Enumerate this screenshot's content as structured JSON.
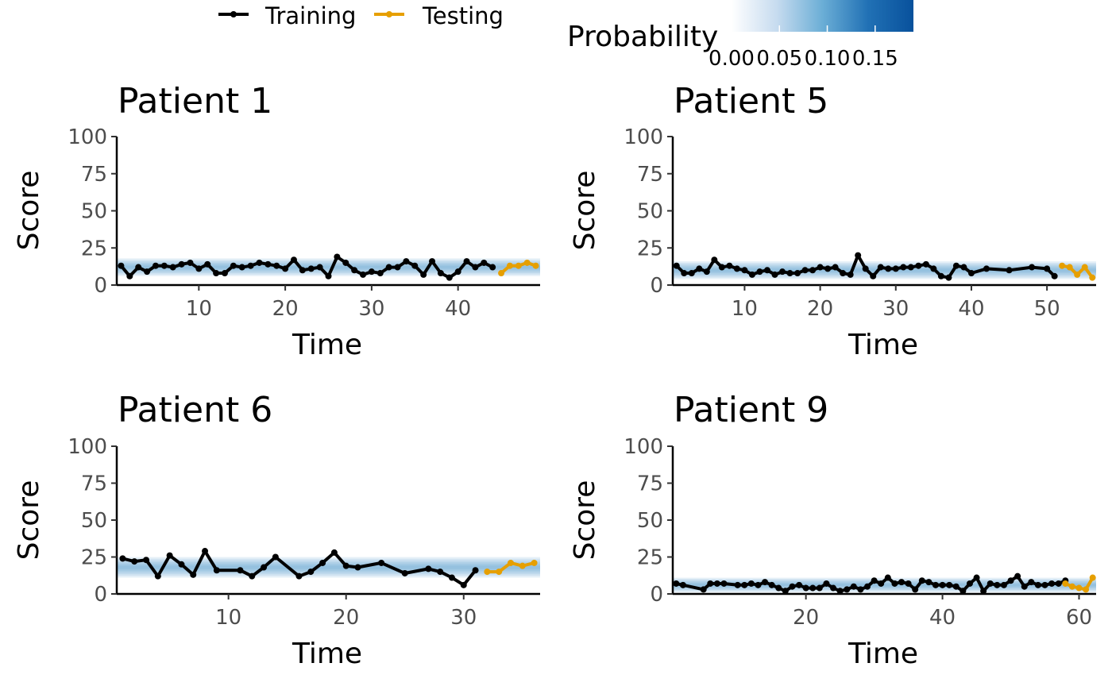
{
  "legend": {
    "series": [
      {
        "name": "Training",
        "color": "#000000"
      },
      {
        "name": "Testing",
        "color": "#E69F00"
      }
    ],
    "probability": {
      "title": "Probability",
      "ticks": [
        "0.00",
        "0.05",
        "0.10",
        "0.15"
      ],
      "tick_values": [
        0,
        0.05,
        0.1,
        0.15
      ],
      "range": [
        0,
        0.19
      ],
      "colors": [
        "#ffffff",
        "#c6dbef",
        "#6baed6",
        "#2171b5",
        "#08519c"
      ]
    }
  },
  "colors": {
    "training": "#000000",
    "testing": "#E69F00",
    "band": "#4292c6"
  },
  "chart_data": [
    {
      "type": "line",
      "title": "Patient 1",
      "xlabel": "Time",
      "ylabel": "Score",
      "xlim": [
        0.5,
        49.5
      ],
      "ylim": [
        0,
        100
      ],
      "xticks": [
        10,
        20,
        30,
        40
      ],
      "yticks": [
        0,
        25,
        50,
        75,
        100
      ],
      "band": {
        "center": 12,
        "halfwidth": 6
      },
      "series": [
        {
          "name": "Training",
          "x": [
            1,
            2,
            3,
            4,
            5,
            6,
            7,
            8,
            9,
            10,
            11,
            12,
            13,
            14,
            15,
            16,
            17,
            18,
            19,
            20,
            21,
            22,
            23,
            24,
            25,
            26,
            27,
            28,
            29,
            30,
            31,
            32,
            33,
            34,
            35,
            36,
            37,
            38,
            39,
            40,
            41,
            42,
            43,
            44
          ],
          "y": [
            13,
            6,
            12,
            9,
            13,
            13,
            12,
            14,
            15,
            11,
            14,
            8,
            8,
            13,
            12,
            13,
            15,
            14,
            13,
            11,
            17,
            10,
            11,
            12,
            6,
            19,
            15,
            10,
            7,
            9,
            8,
            12,
            12,
            16,
            13,
            7,
            16,
            8,
            5,
            9,
            16,
            12,
            15,
            12
          ]
        },
        {
          "name": "Testing",
          "x": [
            45,
            46,
            47,
            48,
            49
          ],
          "y": [
            8,
            13,
            13,
            15,
            13
          ]
        }
      ]
    },
    {
      "type": "line",
      "title": "Patient 5",
      "xlabel": "Time",
      "ylabel": "Score",
      "xlim": [
        0.5,
        56.5
      ],
      "ylim": [
        0,
        100
      ],
      "xticks": [
        10,
        20,
        30,
        40,
        50
      ],
      "yticks": [
        0,
        25,
        50,
        75,
        100
      ],
      "band": {
        "center": 10,
        "halfwidth": 6
      },
      "series": [
        {
          "name": "Training",
          "x": [
            1,
            2,
            3,
            4,
            5,
            6,
            7,
            8,
            9,
            10,
            11,
            12,
            13,
            14,
            15,
            16,
            17,
            18,
            19,
            20,
            21,
            22,
            23,
            24,
            25,
            26,
            27,
            28,
            29,
            30,
            31,
            32,
            33,
            34,
            35,
            36,
            37,
            38,
            39,
            40,
            42,
            45,
            48,
            50,
            51
          ],
          "y": [
            13,
            8,
            8,
            11,
            9,
            17,
            12,
            13,
            11,
            10,
            7,
            9,
            10,
            7,
            9,
            8,
            8,
            10,
            10,
            12,
            11,
            12,
            8,
            7,
            20,
            11,
            6,
            12,
            11,
            11,
            12,
            12,
            13,
            14,
            11,
            6,
            5,
            13,
            12,
            8,
            11,
            10,
            12,
            11,
            6
          ]
        },
        {
          "name": "Testing",
          "x": [
            52,
            53,
            54,
            55,
            56
          ],
          "y": [
            13,
            12,
            7,
            12,
            5
          ]
        }
      ]
    },
    {
      "type": "line",
      "title": "Patient 6",
      "xlabel": "Time",
      "ylabel": "Score",
      "xlim": [
        0.5,
        36.5
      ],
      "ylim": [
        0,
        100
      ],
      "xticks": [
        10,
        20,
        30
      ],
      "yticks": [
        0,
        25,
        50,
        75,
        100
      ],
      "band": {
        "center": 18,
        "halfwidth": 7
      },
      "series": [
        {
          "name": "Training",
          "x": [
            1,
            2,
            3,
            4,
            5,
            6,
            7,
            8,
            9,
            11,
            12,
            13,
            14,
            16,
            17,
            18,
            19,
            20,
            21,
            23,
            25,
            27,
            28,
            29,
            30,
            31
          ],
          "y": [
            24,
            22,
            23,
            12,
            26,
            20,
            13,
            29,
            16,
            16,
            12,
            18,
            25,
            12,
            15,
            21,
            28,
            19,
            18,
            21,
            14,
            17,
            15,
            11,
            6,
            16
          ]
        },
        {
          "name": "Testing",
          "x": [
            32,
            33,
            34,
            35,
            36
          ],
          "y": [
            15,
            15,
            21,
            19,
            21
          ]
        }
      ]
    },
    {
      "type": "line",
      "title": "Patient 9",
      "xlabel": "Time",
      "ylabel": "Score",
      "xlim": [
        0.5,
        62.5
      ],
      "ylim": [
        0,
        100
      ],
      "xticks": [
        20,
        40,
        60
      ],
      "yticks": [
        0,
        25,
        50,
        75,
        100
      ],
      "band": {
        "center": 6,
        "halfwidth": 5
      },
      "series": [
        {
          "name": "Training",
          "x": [
            1,
            2,
            5,
            6,
            7,
            8,
            10,
            11,
            12,
            13,
            14,
            15,
            16,
            17,
            18,
            19,
            20,
            21,
            22,
            23,
            24,
            25,
            26,
            27,
            28,
            29,
            30,
            31,
            32,
            33,
            34,
            35,
            36,
            37,
            38,
            39,
            40,
            41,
            42,
            43,
            44,
            45,
            46,
            47,
            48,
            49,
            50,
            51,
            52,
            53,
            54,
            55,
            56,
            57,
            58
          ],
          "y": [
            7,
            6,
            3,
            7,
            7,
            7,
            6,
            6,
            7,
            6,
            8,
            6,
            4,
            2,
            5,
            6,
            4,
            4,
            4,
            7,
            4,
            2,
            3,
            5,
            3,
            5,
            9,
            7,
            11,
            7,
            8,
            7,
            3,
            9,
            8,
            6,
            6,
            6,
            5,
            2,
            7,
            11,
            2,
            7,
            6,
            6,
            9,
            12,
            5,
            8,
            6,
            6,
            7,
            7,
            9
          ]
        },
        {
          "name": "Testing",
          "x": [
            58,
            59,
            60,
            61,
            62
          ],
          "y": [
            7,
            5,
            4,
            3,
            11
          ]
        }
      ]
    }
  ]
}
